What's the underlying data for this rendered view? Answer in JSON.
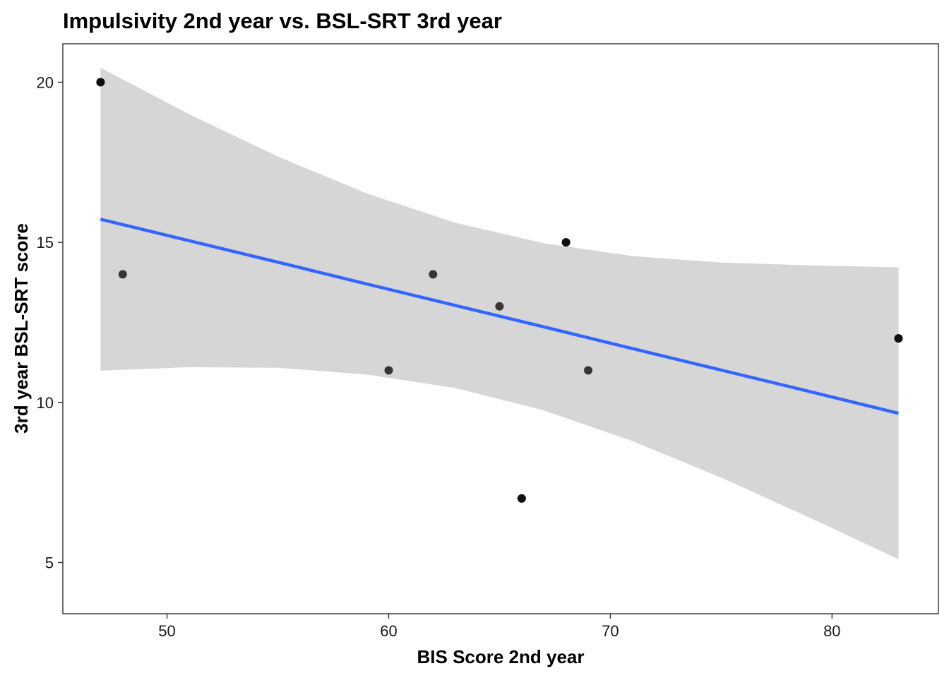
{
  "chart_data": {
    "type": "scatter",
    "title": "Impulsivity 2nd year vs. BSL-SRT 3rd year",
    "xlabel": "BIS Score 2nd year",
    "ylabel": "3rd year BSL-SRT score",
    "xlim": [
      45.3,
      84.8
    ],
    "ylim": [
      3.4,
      21.2
    ],
    "x_ticks": [
      50,
      60,
      70,
      80
    ],
    "y_ticks": [
      5,
      10,
      15,
      20
    ],
    "grid": false,
    "legend": "none",
    "point_color": "#000000",
    "point_opacity": 0.75,
    "points": [
      {
        "x": 47,
        "y": 20
      },
      {
        "x": 47,
        "y": 20
      },
      {
        "x": 48,
        "y": 14
      },
      {
        "x": 60,
        "y": 11
      },
      {
        "x": 62,
        "y": 14
      },
      {
        "x": 65,
        "y": 13
      },
      {
        "x": 66,
        "y": 7
      },
      {
        "x": 66,
        "y": 7
      },
      {
        "x": 68,
        "y": 15
      },
      {
        "x": 68,
        "y": 15
      },
      {
        "x": 69,
        "y": 11
      },
      {
        "x": 83,
        "y": 12
      },
      {
        "x": 83,
        "y": 12
      }
    ],
    "regression": {
      "method": "lm",
      "color": "#3366FF",
      "x": [
        47,
        51,
        55,
        59,
        63,
        67,
        71,
        75,
        79,
        83
      ],
      "fit": [
        15.72,
        15.05,
        14.38,
        13.7,
        13.03,
        12.36,
        11.68,
        11.01,
        10.34,
        9.66
      ],
      "lower": [
        10.99,
        11.1,
        11.08,
        10.87,
        10.45,
        9.75,
        8.79,
        7.65,
        6.4,
        5.1
      ],
      "upper": [
        20.45,
        19.0,
        17.68,
        16.53,
        15.61,
        14.97,
        14.57,
        14.37,
        14.28,
        14.22
      ]
    },
    "band_color": "#d6d6d6"
  }
}
